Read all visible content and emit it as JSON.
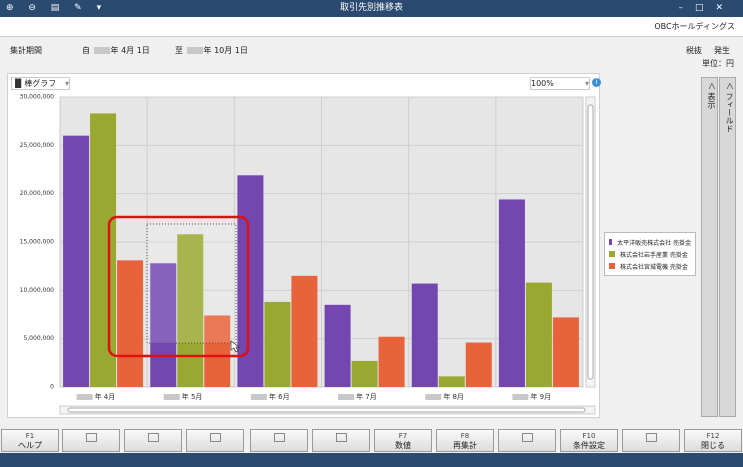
{
  "window": {
    "title": "取引先別推移表",
    "company": "OBCホールディングス"
  },
  "period": {
    "label": "集計期間",
    "from_prefix": "自",
    "from_date": "年 4月 1日",
    "to_prefix": "至",
    "to_date": "年 10月 1日"
  },
  "tax": "税抜",
  "basis": "発生",
  "unit": "単位：円",
  "toolbar": {
    "chart_type": "棒グラフ",
    "zoom": "100%"
  },
  "side_tabs": [
    "表示",
    "フィールド"
  ],
  "function_keys": [
    {
      "key": "F1",
      "label": "ヘルプ"
    },
    {
      "key": "F7",
      "label": "数値"
    },
    {
      "key": "F8",
      "label": "再集計"
    },
    {
      "key": "F10",
      "label": "条件設定"
    },
    {
      "key": "F12",
      "label": "閉じる"
    }
  ],
  "chart_data": {
    "type": "bar",
    "categories": [
      "年 4月",
      "年 5月",
      "年 6月",
      "年 7月",
      "年 8月",
      "年 9月"
    ],
    "series": [
      {
        "name": "太平洋販売株式会社 売掛金",
        "color": "#7346b0",
        "values": [
          26000000,
          12800000,
          21900000,
          8500000,
          10700000,
          19400000
        ]
      },
      {
        "name": "株式会社岩手産業 売掛金",
        "color": "#99a830",
        "values": [
          28300000,
          15800000,
          8800000,
          2700000,
          1100000,
          10800000
        ]
      },
      {
        "name": "株式会社宮城電機 売掛金",
        "color": "#e8623a",
        "values": [
          13100000,
          7400000,
          11500000,
          5200000,
          4600000,
          7200000
        ]
      }
    ],
    "ylim": [
      0,
      30000000
    ],
    "yticks": [
      0,
      {
        "value": 5000000,
        "label": "5,000,000"
      },
      {
        "value": 10000000,
        "label": "10,000,000"
      },
      {
        "value": 15000000,
        "label": "15,000,000"
      },
      {
        "value": 20000000,
        "label": "20,000,000"
      },
      {
        "value": 25000000,
        "label": "25,000,000"
      },
      {
        "value": 30000000,
        "label": "30,000,000"
      }
    ],
    "grid": true,
    "legend": "right"
  }
}
